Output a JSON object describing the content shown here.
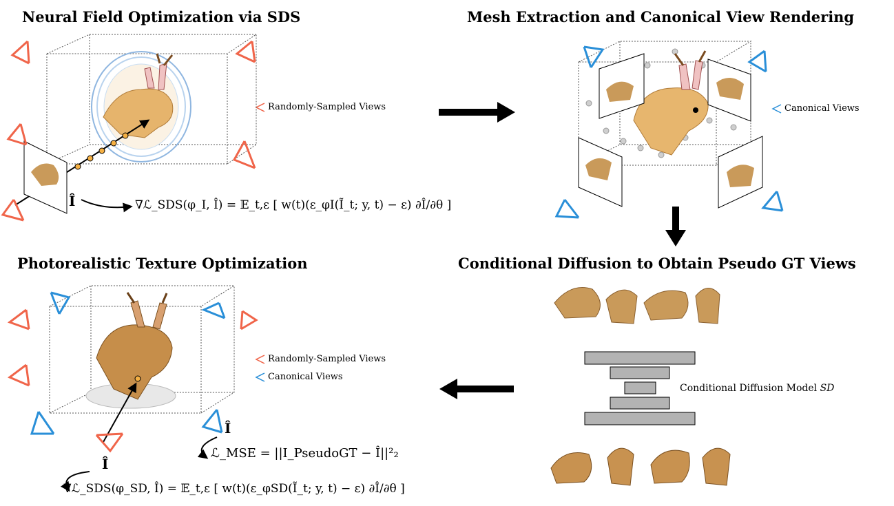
{
  "panels": {
    "sds": {
      "title": "Neural Field Optimization via SDS",
      "legend": "Randomly-Sampled Views"
    },
    "mesh": {
      "title": "Mesh Extraction and Canonical View Rendering",
      "legend": "Canonical Views"
    },
    "diffusion": {
      "title": "Conditional Diffusion to Obtain Pseudo GT Views",
      "model_label_prefix": "Conditional Diffusion Model ",
      "model_label_symbol": "SD"
    },
    "texture": {
      "title": "Photorealistic Texture Optimization",
      "legend_random": "Randomly-Sampled Views",
      "legend_canonical": "Canonical Views"
    }
  },
  "equations": {
    "ihat": "Î",
    "sds_grad": "∇ℒ_SDS(φ_I, Î) = 𝔼_t,ε [ w(t)(ε_φI(Ĩ_t; y, t) − ε) ∂Î/∂θ ]",
    "mse": "ℒ_MSE = ||I_PseudoGT − Î||²₂",
    "sds_grad_sd": "∇ℒ_SDS(φ_SD, Î) = 𝔼_t,ε [ w(t)(ε_φSD(Ĩ_t; y, t) − ε) ∂Î/∂θ ]"
  },
  "colors": {
    "random_view": "#f0654a",
    "canonical_view": "#2a8fd8",
    "model_block": "#b3b3b3",
    "point": "#f5b043",
    "jackalope": "#d9a35a"
  }
}
